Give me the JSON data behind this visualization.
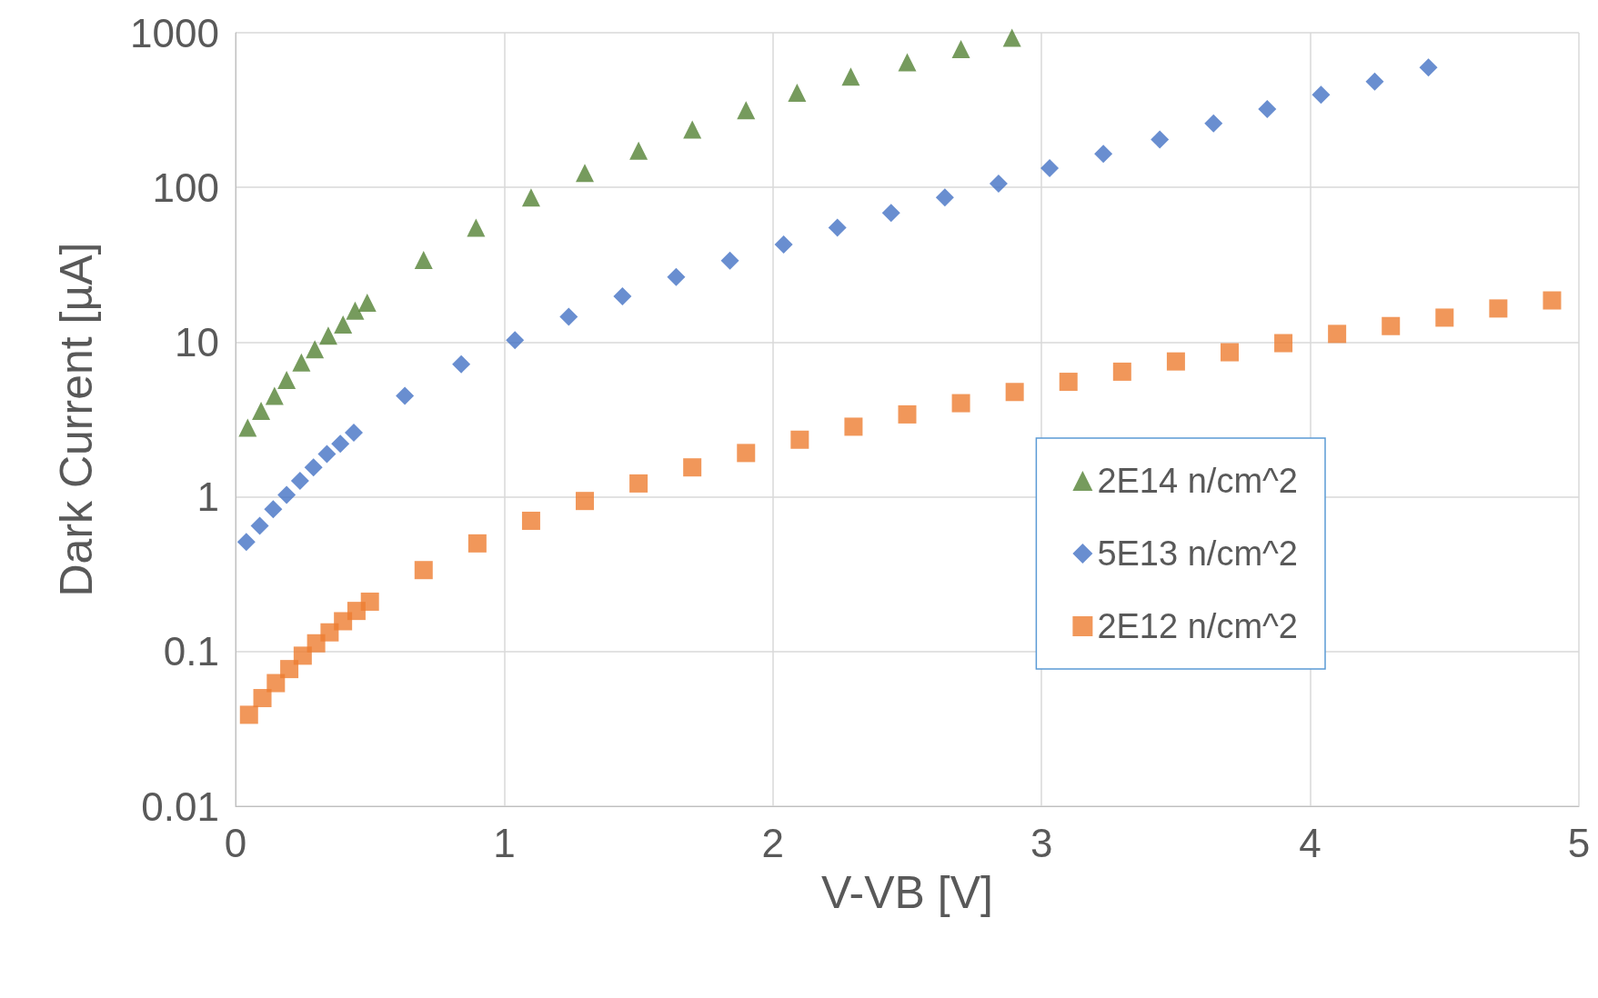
{
  "chart_data": {
    "type": "scatter",
    "xlabel": "V-VB [V]",
    "ylabel": "Dark Current [µA]",
    "log": "y",
    "grid": true,
    "legend": "right",
    "xlim": [
      0,
      5
    ],
    "xticks": [
      0,
      1,
      2,
      3,
      4,
      5
    ],
    "ylim": [
      0.01,
      1000
    ],
    "yticks": [
      0.01,
      0.1,
      1,
      10,
      100,
      1000
    ],
    "series": [
      {
        "name": "2E14 n/cm^2",
        "color": "#548235",
        "marker": "triangle",
        "x": [
          0.045,
          0.095,
          0.145,
          0.19,
          0.245,
          0.295,
          0.345,
          0.4,
          0.445,
          0.49,
          0.7,
          0.895,
          1.1,
          1.3,
          1.5,
          1.7,
          1.9,
          2.09,
          2.29,
          2.5,
          2.7,
          2.89
        ],
        "values": [
          2.8,
          3.6,
          4.5,
          5.7,
          7.4,
          9,
          11,
          13,
          16,
          18,
          34,
          55,
          86,
          124,
          173,
          237,
          316,
          409,
          521,
          644,
          785,
          927
        ]
      },
      {
        "name": "5E13 n/cm^2",
        "color": "#4472c4",
        "marker": "diamond",
        "x": [
          0.04,
          0.09,
          0.14,
          0.19,
          0.24,
          0.29,
          0.34,
          0.39,
          0.44,
          0.63,
          0.84,
          1.04,
          1.24,
          1.44,
          1.64,
          1.84,
          2.04,
          2.24,
          2.44,
          2.64,
          2.84,
          3.03,
          3.23,
          3.44,
          3.64,
          3.84,
          4.04,
          4.24,
          4.44
        ],
        "values": [
          0.51,
          0.65,
          0.83,
          1.03,
          1.27,
          1.55,
          1.89,
          2.2,
          2.6,
          4.5,
          7.2,
          10.3,
          14.6,
          19.8,
          26.4,
          33.6,
          42.8,
          55,
          68.5,
          86,
          106,
          133,
          165,
          204,
          259,
          321,
          397,
          483,
          597
        ]
      },
      {
        "name": "2E12 n/cm^2",
        "color": "#ed7d31",
        "marker": "square",
        "x": [
          0.05,
          0.1,
          0.15,
          0.2,
          0.25,
          0.3,
          0.35,
          0.4,
          0.45,
          0.5,
          0.7,
          0.9,
          1.1,
          1.3,
          1.5,
          1.7,
          1.9,
          2.1,
          2.3,
          2.5,
          2.7,
          2.9,
          3.1,
          3.3,
          3.5,
          3.7,
          3.9,
          4.1,
          4.3,
          4.5,
          4.7,
          4.9
        ],
        "values": [
          0.039,
          0.05,
          0.0625,
          0.077,
          0.094,
          0.113,
          0.133,
          0.157,
          0.183,
          0.21,
          0.336,
          0.5,
          0.7,
          0.94,
          1.22,
          1.55,
          1.92,
          2.34,
          2.84,
          3.41,
          4.03,
          4.76,
          5.54,
          6.44,
          7.5,
          8.6,
          9.85,
          11.3,
          12.7,
          14.4,
          16.5,
          18.6
        ]
      }
    ]
  }
}
